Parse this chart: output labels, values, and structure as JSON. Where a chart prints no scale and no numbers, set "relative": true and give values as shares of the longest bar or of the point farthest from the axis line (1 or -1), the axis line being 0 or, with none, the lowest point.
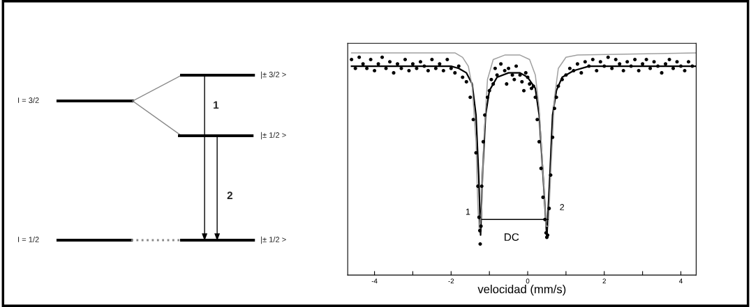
{
  "chart_data": [
    {
      "type": "other",
      "annotations": [
        "I = 3/2",
        "I = 1/2",
        "|± 3/2 >",
        "|± 1/2 >",
        "|± 1/2 >",
        "1",
        "2"
      ]
    },
    {
      "type": "scatter",
      "relative": true,
      "xlabel": "velocidad (mm/s)",
      "xlim": [
        -4.7,
        4.4
      ],
      "xticks": [
        -4,
        {
          "value": -3,
          "label": null
        },
        -2,
        {
          "value": -1,
          "label": null
        },
        0,
        {
          "value": 1,
          "label": null
        },
        2,
        {
          "value": 3,
          "label": null
        },
        4
      ],
      "tick_labels": "x",
      "grid": false,
      "annotations": [
        "1",
        "2",
        "DC"
      ],
      "series": [
        {
          "type": "scatter",
          "color": "#000000",
          "marker": "circle",
          "x": [
            -4.6,
            -4.5,
            -4.4,
            -4.3,
            -4.2,
            -4.1,
            -4.0,
            -3.9,
            -3.8,
            -3.7,
            -3.6,
            -3.5,
            -3.4,
            -3.3,
            -3.2,
            -3.1,
            -3.0,
            -2.9,
            -2.8,
            -2.7,
            -2.6,
            -2.5,
            -2.4,
            -2.3,
            -2.2,
            -2.1,
            -2.0,
            -1.9,
            -1.8,
            -1.7,
            -1.6,
            -1.5,
            -1.42,
            -1.35,
            -1.3,
            -1.27,
            -1.25,
            -1.24,
            -1.22,
            -1.2,
            -1.16,
            -1.12,
            -1.05,
            -1.0,
            -0.95,
            -0.9,
            -0.85,
            -0.8,
            -0.7,
            -0.6,
            -0.55,
            -0.5,
            -0.4,
            -0.35,
            -0.3,
            -0.2,
            -0.15,
            -0.1,
            -0.05,
            0.0,
            0.05,
            0.1,
            0.15,
            0.2,
            0.25,
            0.3,
            0.35,
            0.4,
            0.45,
            0.48,
            0.5,
            0.52,
            0.56,
            0.6,
            0.65,
            0.7,
            0.75,
            0.8,
            0.9,
            1.0,
            1.1,
            1.2,
            1.3,
            1.4,
            1.5,
            1.6,
            1.7,
            1.8,
            1.9,
            2.0,
            2.1,
            2.2,
            2.3,
            2.4,
            2.5,
            2.6,
            2.7,
            2.8,
            2.9,
            3.0,
            3.1,
            3.2,
            3.3,
            3.4,
            3.5,
            3.6,
            3.7,
            3.8,
            3.9,
            4.0,
            4.1,
            4.2,
            4.3
          ],
          "values": [
            0.97,
            0.93,
            0.98,
            0.95,
            0.93,
            0.97,
            0.92,
            0.95,
            0.98,
            0.93,
            0.96,
            0.91,
            0.95,
            0.93,
            0.97,
            0.92,
            0.95,
            0.93,
            0.96,
            0.94,
            0.92,
            0.97,
            0.93,
            0.95,
            0.92,
            0.97,
            0.93,
            0.91,
            0.94,
            0.89,
            0.87,
            0.8,
            0.7,
            0.55,
            0.4,
            0.26,
            0.2,
            0.14,
            0.22,
            0.4,
            0.6,
            0.72,
            0.8,
            0.83,
            0.88,
            0.86,
            0.93,
            0.9,
            0.95,
            0.92,
            0.86,
            0.93,
            0.9,
            0.88,
            0.94,
            0.9,
            0.87,
            0.83,
            0.91,
            0.89,
            0.86,
            0.84,
            0.85,
            0.8,
            0.7,
            0.6,
            0.48,
            0.35,
            0.25,
            0.19,
            0.17,
            0.18,
            0.3,
            0.45,
            0.62,
            0.75,
            0.8,
            0.85,
            0.88,
            0.9,
            0.93,
            0.92,
            0.95,
            0.91,
            0.96,
            0.94,
            0.97,
            0.92,
            0.96,
            0.94,
            0.98,
            0.93,
            0.97,
            0.95,
            0.92,
            0.96,
            0.94,
            0.97,
            0.92,
            0.95,
            0.97,
            0.93,
            0.96,
            0.94,
            0.91,
            0.95,
            0.97,
            0.93,
            0.96,
            0.94,
            0.92,
            0.96,
            0.94
          ]
        },
        {
          "type": "line",
          "color": "#000000",
          "x": [
            -4.6,
            -2.0,
            -1.8,
            -1.6,
            -1.45,
            -1.35,
            -1.28,
            -1.23,
            -1.18,
            -1.1,
            -1.0,
            -0.8,
            -0.5,
            -0.2,
            0.0,
            0.2,
            0.3,
            0.4,
            0.5,
            0.58,
            0.65,
            0.75,
            0.9,
            1.2,
            1.6,
            4.4
          ],
          "values": [
            0.94,
            0.94,
            0.93,
            0.91,
            0.86,
            0.72,
            0.45,
            0.18,
            0.45,
            0.72,
            0.83,
            0.89,
            0.91,
            0.91,
            0.89,
            0.84,
            0.72,
            0.45,
            0.17,
            0.45,
            0.72,
            0.83,
            0.89,
            0.92,
            0.94,
            0.94
          ]
        },
        {
          "type": "line",
          "color": "#a0a0a0",
          "x": [
            -4.6,
            -1.9,
            -1.7,
            -1.55,
            -1.45,
            -1.35,
            -1.3,
            -1.26,
            -1.2,
            -1.15,
            -1.05,
            -0.9,
            -0.6,
            -0.2,
            0.05,
            0.2,
            0.3,
            0.42,
            0.48,
            0.54,
            0.6,
            0.7,
            0.8,
            1.0,
            1.3,
            4.4
          ],
          "values": [
            1.0,
            1.0,
            0.98,
            0.94,
            0.85,
            0.6,
            0.3,
            0.19,
            0.3,
            0.6,
            0.88,
            0.97,
            0.99,
            0.99,
            0.97,
            0.9,
            0.75,
            0.4,
            0.22,
            0.22,
            0.45,
            0.8,
            0.93,
            0.98,
            0.99,
            1.0
          ]
        }
      ]
    }
  ]
}
